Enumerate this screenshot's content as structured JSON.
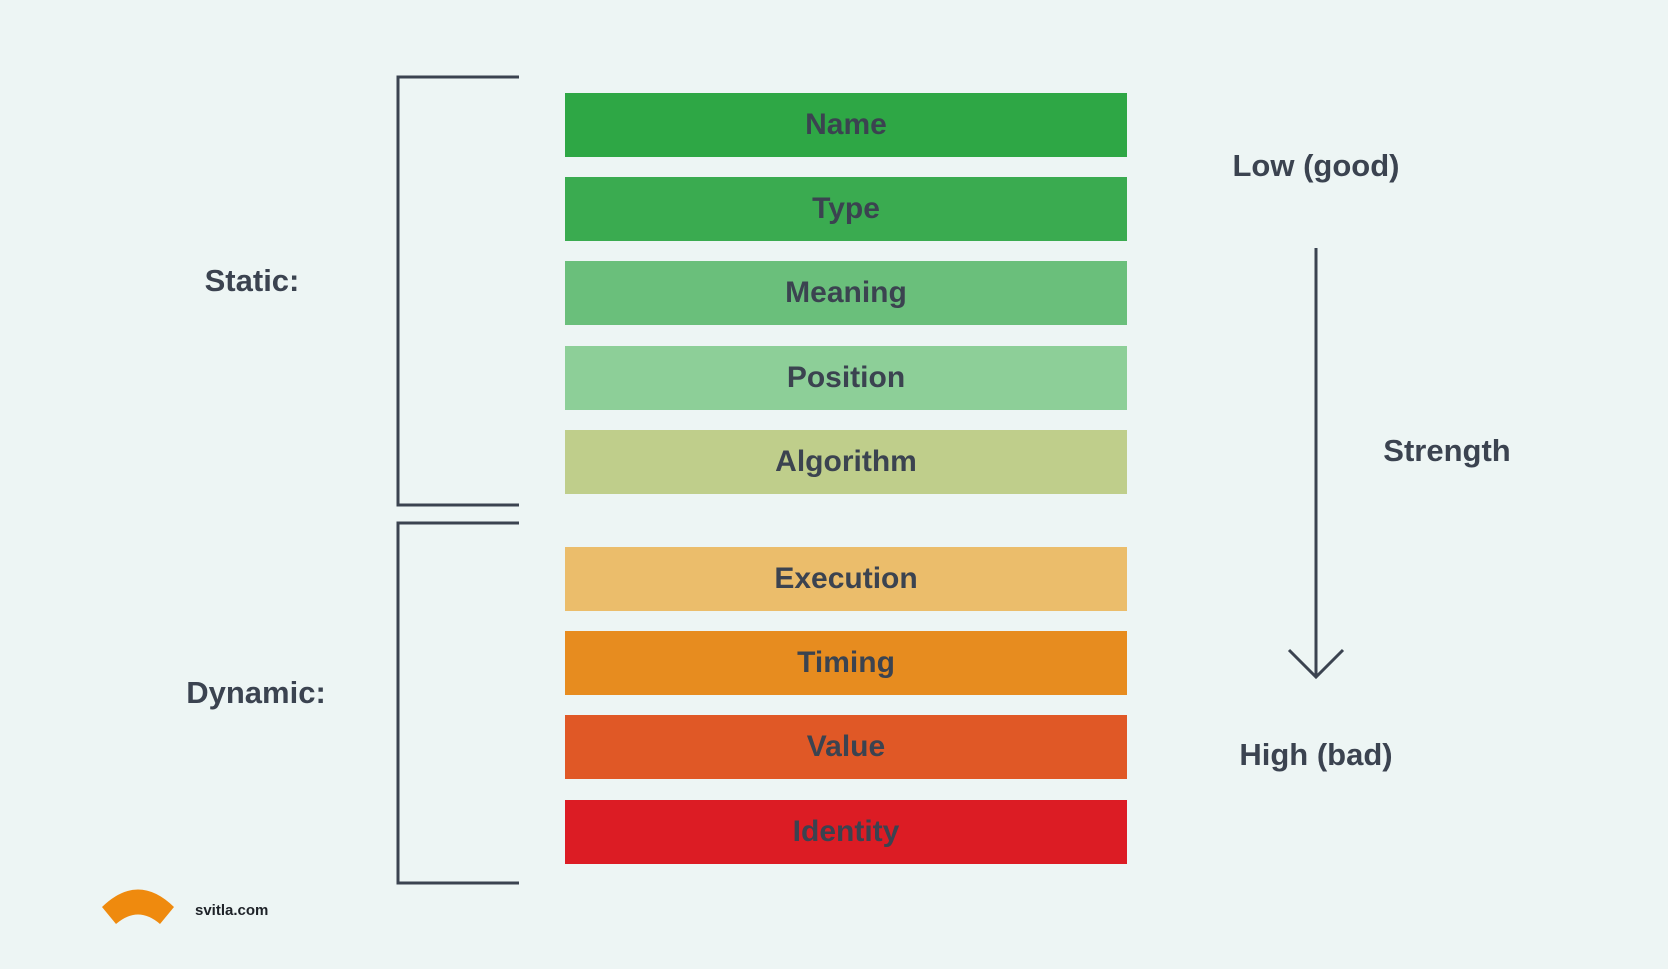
{
  "groups": [
    {
      "label": "Static:",
      "items": [
        "Name",
        "Type",
        "Meaning",
        "Position",
        "Algorithm"
      ]
    },
    {
      "label": "Dynamic:",
      "items": [
        "Execution",
        "Timing",
        "Value",
        "Identity"
      ]
    }
  ],
  "scale": {
    "top": "Low (good)",
    "middle": "Strength",
    "bottom": "High (bad)"
  },
  "footer": {
    "site": "svitla.com"
  }
}
